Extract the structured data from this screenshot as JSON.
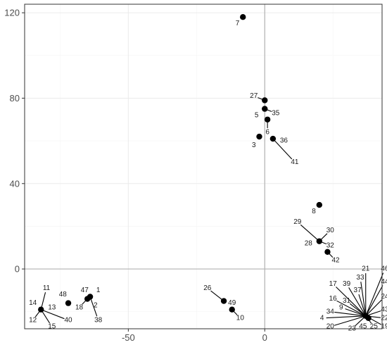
{
  "chart_data": {
    "type": "scatter",
    "title": "",
    "xlabel": "",
    "ylabel": "",
    "xlim": [
      -88,
      43
    ],
    "ylim": [
      -28,
      124
    ],
    "x_ticks": [
      -50,
      0
    ],
    "y_ticks": [
      0,
      40,
      80,
      120
    ],
    "x_tick_labels": [
      "-50",
      "0"
    ],
    "y_tick_labels": [
      "0",
      "40",
      "80",
      "120"
    ],
    "grid": true,
    "zero_lines": true,
    "colors": {
      "point": "#000000",
      "grid_major": "#ebebeb",
      "grid_minor": "#f5f5f5",
      "zero_line": "#b3b3b3",
      "panel_border": "#333333",
      "tick_text": "#4d4d4d"
    },
    "points": [
      {
        "x": -8,
        "y": 118
      },
      {
        "x": 0,
        "y": 79
      },
      {
        "x": 0,
        "y": 75
      },
      {
        "x": 1,
        "y": 70
      },
      {
        "x": -2,
        "y": 62
      },
      {
        "x": 3,
        "y": 61
      },
      {
        "x": 20,
        "y": 30
      },
      {
        "x": 20,
        "y": 13
      },
      {
        "x": 23,
        "y": 8
      },
      {
        "x": -15,
        "y": -15
      },
      {
        "x": -12,
        "y": -19
      },
      {
        "x": -72,
        "y": -16
      },
      {
        "x": -65,
        "y": -14
      },
      {
        "x": -64,
        "y": -13
      },
      {
        "x": -82,
        "y": -19
      },
      {
        "x": 37,
        "y": -22
      },
      {
        "x": 38,
        "y": -23
      }
    ],
    "labels": [
      {
        "text": "7",
        "x": -8,
        "y": 118,
        "lx": -10,
        "ly": 115
      },
      {
        "text": "27",
        "x": 0,
        "y": 79,
        "lx": -4,
        "ly": 81
      },
      {
        "text": "5",
        "x": 0,
        "y": 75,
        "lx": -3,
        "ly": 72
      },
      {
        "text": "35",
        "x": 0,
        "y": 75,
        "lx": 4,
        "ly": 73
      },
      {
        "text": "6",
        "x": 1,
        "y": 70,
        "lx": 1,
        "ly": 64
      },
      {
        "text": "3",
        "x": -2,
        "y": 62,
        "lx": -4,
        "ly": 58
      },
      {
        "text": "36",
        "x": 3,
        "y": 61,
        "lx": 7,
        "ly": 60
      },
      {
        "text": "41",
        "x": 3,
        "y": 61,
        "lx": 11,
        "ly": 50
      },
      {
        "text": "8",
        "x": 20,
        "y": 30,
        "lx": 18,
        "ly": 27
      },
      {
        "text": "29",
        "x": 20,
        "y": 13,
        "lx": 12,
        "ly": 22
      },
      {
        "text": "30",
        "x": 20,
        "y": 13,
        "lx": 24,
        "ly": 18
      },
      {
        "text": "28",
        "x": 20,
        "y": 13,
        "lx": 16,
        "ly": 12
      },
      {
        "text": "32",
        "x": 20,
        "y": 13,
        "lx": 24,
        "ly": 11
      },
      {
        "text": "42",
        "x": 23,
        "y": 8,
        "lx": 26,
        "ly": 4
      },
      {
        "text": "26",
        "x": -15,
        "y": -15,
        "lx": -21,
        "ly": -9
      },
      {
        "text": "49",
        "x": -15,
        "y": -15,
        "lx": -12,
        "ly": -16
      },
      {
        "text": "10",
        "x": -12,
        "y": -19,
        "lx": -9,
        "ly": -23
      },
      {
        "text": "48",
        "x": -72,
        "y": -16,
        "lx": -74,
        "ly": -12
      },
      {
        "text": "47",
        "x": -65,
        "y": -14,
        "lx": -66,
        "ly": -10
      },
      {
        "text": "1",
        "x": -64,
        "y": -13,
        "lx": -61,
        "ly": -10
      },
      {
        "text": "2",
        "x": -64,
        "y": -13,
        "lx": -62,
        "ly": -17
      },
      {
        "text": "18",
        "x": -65,
        "y": -14,
        "lx": -68,
        "ly": -18
      },
      {
        "text": "38",
        "x": -64,
        "y": -13,
        "lx": -61,
        "ly": -24
      },
      {
        "text": "11",
        "x": -82,
        "y": -19,
        "lx": -80,
        "ly": -9
      },
      {
        "text": "14",
        "x": -82,
        "y": -19,
        "lx": -85,
        "ly": -16
      },
      {
        "text": "13",
        "x": -82,
        "y": -19,
        "lx": -78,
        "ly": -18
      },
      {
        "text": "12",
        "x": -82,
        "y": -19,
        "lx": -85,
        "ly": -24
      },
      {
        "text": "15",
        "x": -82,
        "y": -19,
        "lx": -78,
        "ly": -27
      },
      {
        "text": "40",
        "x": -82,
        "y": -19,
        "lx": -72,
        "ly": -24
      },
      {
        "text": "21",
        "x": 37,
        "y": -22,
        "lx": 37,
        "ly": 0
      },
      {
        "text": "46",
        "x": 37,
        "y": -22,
        "lx": 44,
        "ly": 0
      },
      {
        "text": "33",
        "x": 37,
        "y": -22,
        "lx": 35,
        "ly": -4
      },
      {
        "text": "17",
        "x": 37,
        "y": -22,
        "lx": 25,
        "ly": -7
      },
      {
        "text": "39",
        "x": 37,
        "y": -22,
        "lx": 30,
        "ly": -7
      },
      {
        "text": "37",
        "x": 37,
        "y": -22,
        "lx": 34,
        "ly": -10
      },
      {
        "text": "44",
        "x": 37,
        "y": -22,
        "lx": 44,
        "ly": -6
      },
      {
        "text": "24",
        "x": 37,
        "y": -22,
        "lx": 44,
        "ly": -13
      },
      {
        "text": "16",
        "x": 37,
        "y": -22,
        "lx": 25,
        "ly": -14
      },
      {
        "text": "31",
        "x": 37,
        "y": -22,
        "lx": 30,
        "ly": -15
      },
      {
        "text": "43",
        "x": 37,
        "y": -22,
        "lx": 44,
        "ly": -19
      },
      {
        "text": "9",
        "x": 37,
        "y": -22,
        "lx": 28,
        "ly": -18
      },
      {
        "text": "34",
        "x": 37,
        "y": -22,
        "lx": 24,
        "ly": -20
      },
      {
        "text": "22",
        "x": 37,
        "y": -22,
        "lx": 44,
        "ly": -23
      },
      {
        "text": "4",
        "x": 37,
        "y": -22,
        "lx": 21,
        "ly": -23
      },
      {
        "text": "20",
        "x": 37,
        "y": -22,
        "lx": 24,
        "ly": -27
      },
      {
        "text": "23",
        "x": 37,
        "y": -22,
        "lx": 32,
        "ly": -28
      },
      {
        "text": "45",
        "x": 37,
        "y": -22,
        "lx": 36,
        "ly": -27
      },
      {
        "text": "25",
        "x": 37,
        "y": -22,
        "lx": 40,
        "ly": -27
      },
      {
        "text": "19",
        "x": 37,
        "y": -22,
        "lx": 44,
        "ly": -27
      }
    ]
  }
}
